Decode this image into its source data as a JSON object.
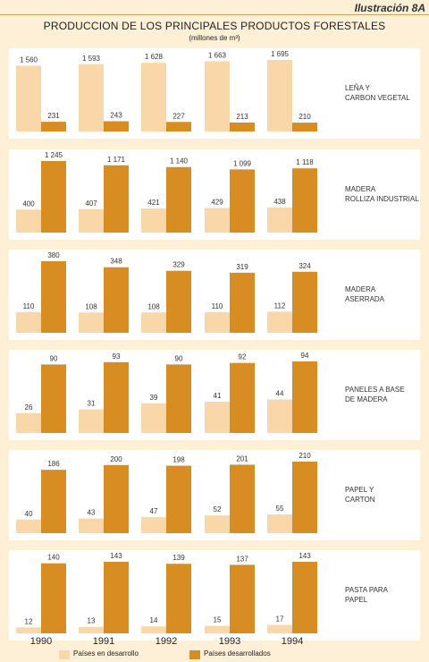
{
  "header": {
    "illustration": "Ilustración 8A",
    "title": "PRODUCCION DE LOS PRINCIPALES PRODUCTOS FORESTALES",
    "units": "(millones de m³)"
  },
  "colors": {
    "developing": "#fad7a8",
    "developed": "#d88d23",
    "panel": "#ffffff",
    "background": "#fdf0d7"
  },
  "chart_data": {
    "type": "bar",
    "categories": [
      "1990",
      "1991",
      "1992",
      "1993",
      "1994"
    ],
    "legend": [
      "Países en desarrollo",
      "Países desarrollados"
    ],
    "panels": [
      {
        "label": [
          "LEÑA Y",
          "CARBON VEGETAL"
        ],
        "series": [
          {
            "name": "Países en desarrollo",
            "values": [
              1560,
              1593,
              1628,
              1663,
              1695
            ],
            "labels": [
              "1 560",
              "1 593",
              "1 628",
              "1 663",
              "1 695"
            ]
          },
          {
            "name": "Países desarrollados",
            "values": [
              231,
              243,
              227,
              213,
              210
            ],
            "labels": [
              "231",
              "243",
              "227",
              "213",
              "210"
            ]
          }
        ]
      },
      {
        "label": [
          "MADERA",
          "ROLLIZA INDUSTRIAL"
        ],
        "series": [
          {
            "name": "Países en desarrollo",
            "values": [
              400,
              407,
              421,
              429,
              438
            ],
            "labels": [
              "400",
              "407",
              "421",
              "429",
              "438"
            ]
          },
          {
            "name": "Países desarrollados",
            "values": [
              1245,
              1171,
              1140,
              1099,
              1118
            ],
            "labels": [
              "1 245",
              "1 171",
              "1 140",
              "1 099",
              "1 118"
            ]
          }
        ]
      },
      {
        "label": [
          "MADERA",
          "ASERRADA"
        ],
        "series": [
          {
            "name": "Países en desarrollo",
            "values": [
              110,
              108,
              108,
              110,
              112
            ],
            "labels": [
              "110",
              "108",
              "108",
              "110",
              "112"
            ]
          },
          {
            "name": "Países desarrollados",
            "values": [
              380,
              348,
              329,
              319,
              324
            ],
            "labels": [
              "380",
              "348",
              "329",
              "319",
              "324"
            ]
          }
        ]
      },
      {
        "label": [
          "PANELES A BASE",
          "DE MADERA"
        ],
        "series": [
          {
            "name": "Países en desarrollo",
            "values": [
              26,
              31,
              39,
              41,
              44
            ],
            "labels": [
              "26",
              "31",
              "39",
              "41",
              "44"
            ]
          },
          {
            "name": "Países desarrollados",
            "values": [
              90,
              93,
              90,
              92,
              94
            ],
            "labels": [
              "90",
              "93",
              "90",
              "92",
              "94"
            ]
          }
        ]
      },
      {
        "label": [
          "PAPEL Y",
          "CARTON"
        ],
        "series": [
          {
            "name": "Países en desarrollo",
            "values": [
              40,
              43,
              47,
              52,
              55
            ],
            "labels": [
              "40",
              "43",
              "47",
              "52",
              "55"
            ]
          },
          {
            "name": "Países desarrollados",
            "values": [
              186,
              200,
              198,
              201,
              210
            ],
            "labels": [
              "186",
              "200",
              "198",
              "201",
              "210"
            ]
          }
        ]
      },
      {
        "label": [
          "PASTA PARA",
          "PAPEL"
        ],
        "series": [
          {
            "name": "Países en desarrollo",
            "values": [
              12,
              13,
              14,
              15,
              17
            ],
            "labels": [
              "12",
              "13",
              "14",
              "15",
              "17"
            ]
          },
          {
            "name": "Países desarrollados",
            "values": [
              140,
              143,
              139,
              137,
              143
            ],
            "labels": [
              "140",
              "143",
              "139",
              "137",
              "143"
            ]
          }
        ]
      }
    ]
  }
}
